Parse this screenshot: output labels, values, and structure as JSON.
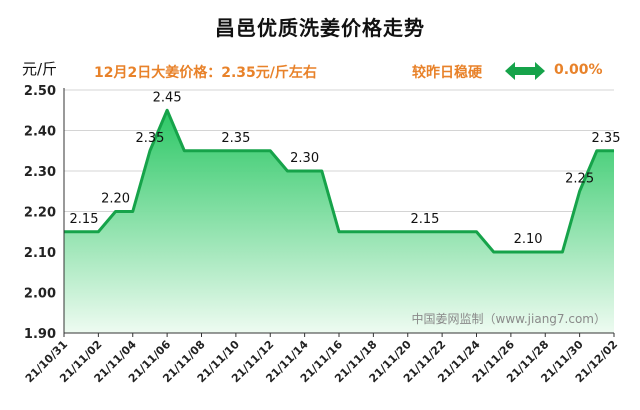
{
  "title": "昌邑优质洗姜价格走势",
  "unit_label": "元/斤",
  "price_note": "12月2日大姜价格：2.35元/斤左右",
  "compare": {
    "label": "较昨日稳硬",
    "value": "0.00%",
    "icon": "double-arrow-icon",
    "icon_color": "#16a34a"
  },
  "watermark": "中国姜网监制（www.jiang7.com）",
  "colors": {
    "line": "#16a34a",
    "fill_top": "#22c55e",
    "fill_bottom": "#eefbf1",
    "accent_text": "#e8822a",
    "grid": "#d4d4d4"
  },
  "chart_data": {
    "type": "area",
    "title": "昌邑优质洗姜价格走势",
    "ylabel": "元/斤",
    "ylim": [
      1.9,
      2.5
    ],
    "y_ticks": [
      "1.90",
      "2.00",
      "2.10",
      "2.20",
      "2.30",
      "2.40",
      "2.50"
    ],
    "x_tick_labels": [
      "21/10/31",
      "21/11/02",
      "21/11/04",
      "21/11/06",
      "21/11/08",
      "21/11/10",
      "21/11/12",
      "21/11/14",
      "21/11/16",
      "21/11/18",
      "21/11/20",
      "21/11/22",
      "21/11/24",
      "21/11/26",
      "21/11/28",
      "21/11/30",
      "21/12/02"
    ],
    "x": [
      "21/10/31",
      "21/11/01",
      "21/11/02",
      "21/11/03",
      "21/11/04",
      "21/11/05",
      "21/11/06",
      "21/11/07",
      "21/11/08",
      "21/11/09",
      "21/11/10",
      "21/11/11",
      "21/11/12",
      "21/11/13",
      "21/11/14",
      "21/11/15",
      "21/11/16",
      "21/11/17",
      "21/11/18",
      "21/11/19",
      "21/11/20",
      "21/11/21",
      "21/11/22",
      "21/11/23",
      "21/11/24",
      "21/11/25",
      "21/11/26",
      "21/11/27",
      "21/11/28",
      "21/11/29",
      "21/11/30",
      "21/12/01",
      "21/12/02"
    ],
    "values": [
      2.15,
      2.15,
      2.15,
      2.2,
      2.2,
      2.35,
      2.45,
      2.35,
      2.35,
      2.35,
      2.35,
      2.35,
      2.35,
      2.3,
      2.3,
      2.3,
      2.15,
      2.15,
      2.15,
      2.15,
      2.15,
      2.15,
      2.15,
      2.15,
      2.15,
      2.1,
      2.1,
      2.1,
      2.1,
      2.1,
      2.25,
      2.35,
      2.35
    ],
    "data_labels": [
      {
        "x": "21/10/31",
        "text": "2.15"
      },
      {
        "x": "21/11/03",
        "text": "2.20"
      },
      {
        "x": "21/11/05",
        "text": "2.35"
      },
      {
        "x": "21/11/06",
        "text": "2.45"
      },
      {
        "x": "21/11/10",
        "text": "2.35"
      },
      {
        "x": "21/11/14",
        "text": "2.30"
      },
      {
        "x": "21/11/21",
        "text": "2.15"
      },
      {
        "x": "21/11/27",
        "text": "2.10"
      },
      {
        "x": "21/11/30",
        "text": "2.25"
      },
      {
        "x": "21/12/02",
        "text": "2.35"
      }
    ],
    "grid": true,
    "legend": "none"
  }
}
